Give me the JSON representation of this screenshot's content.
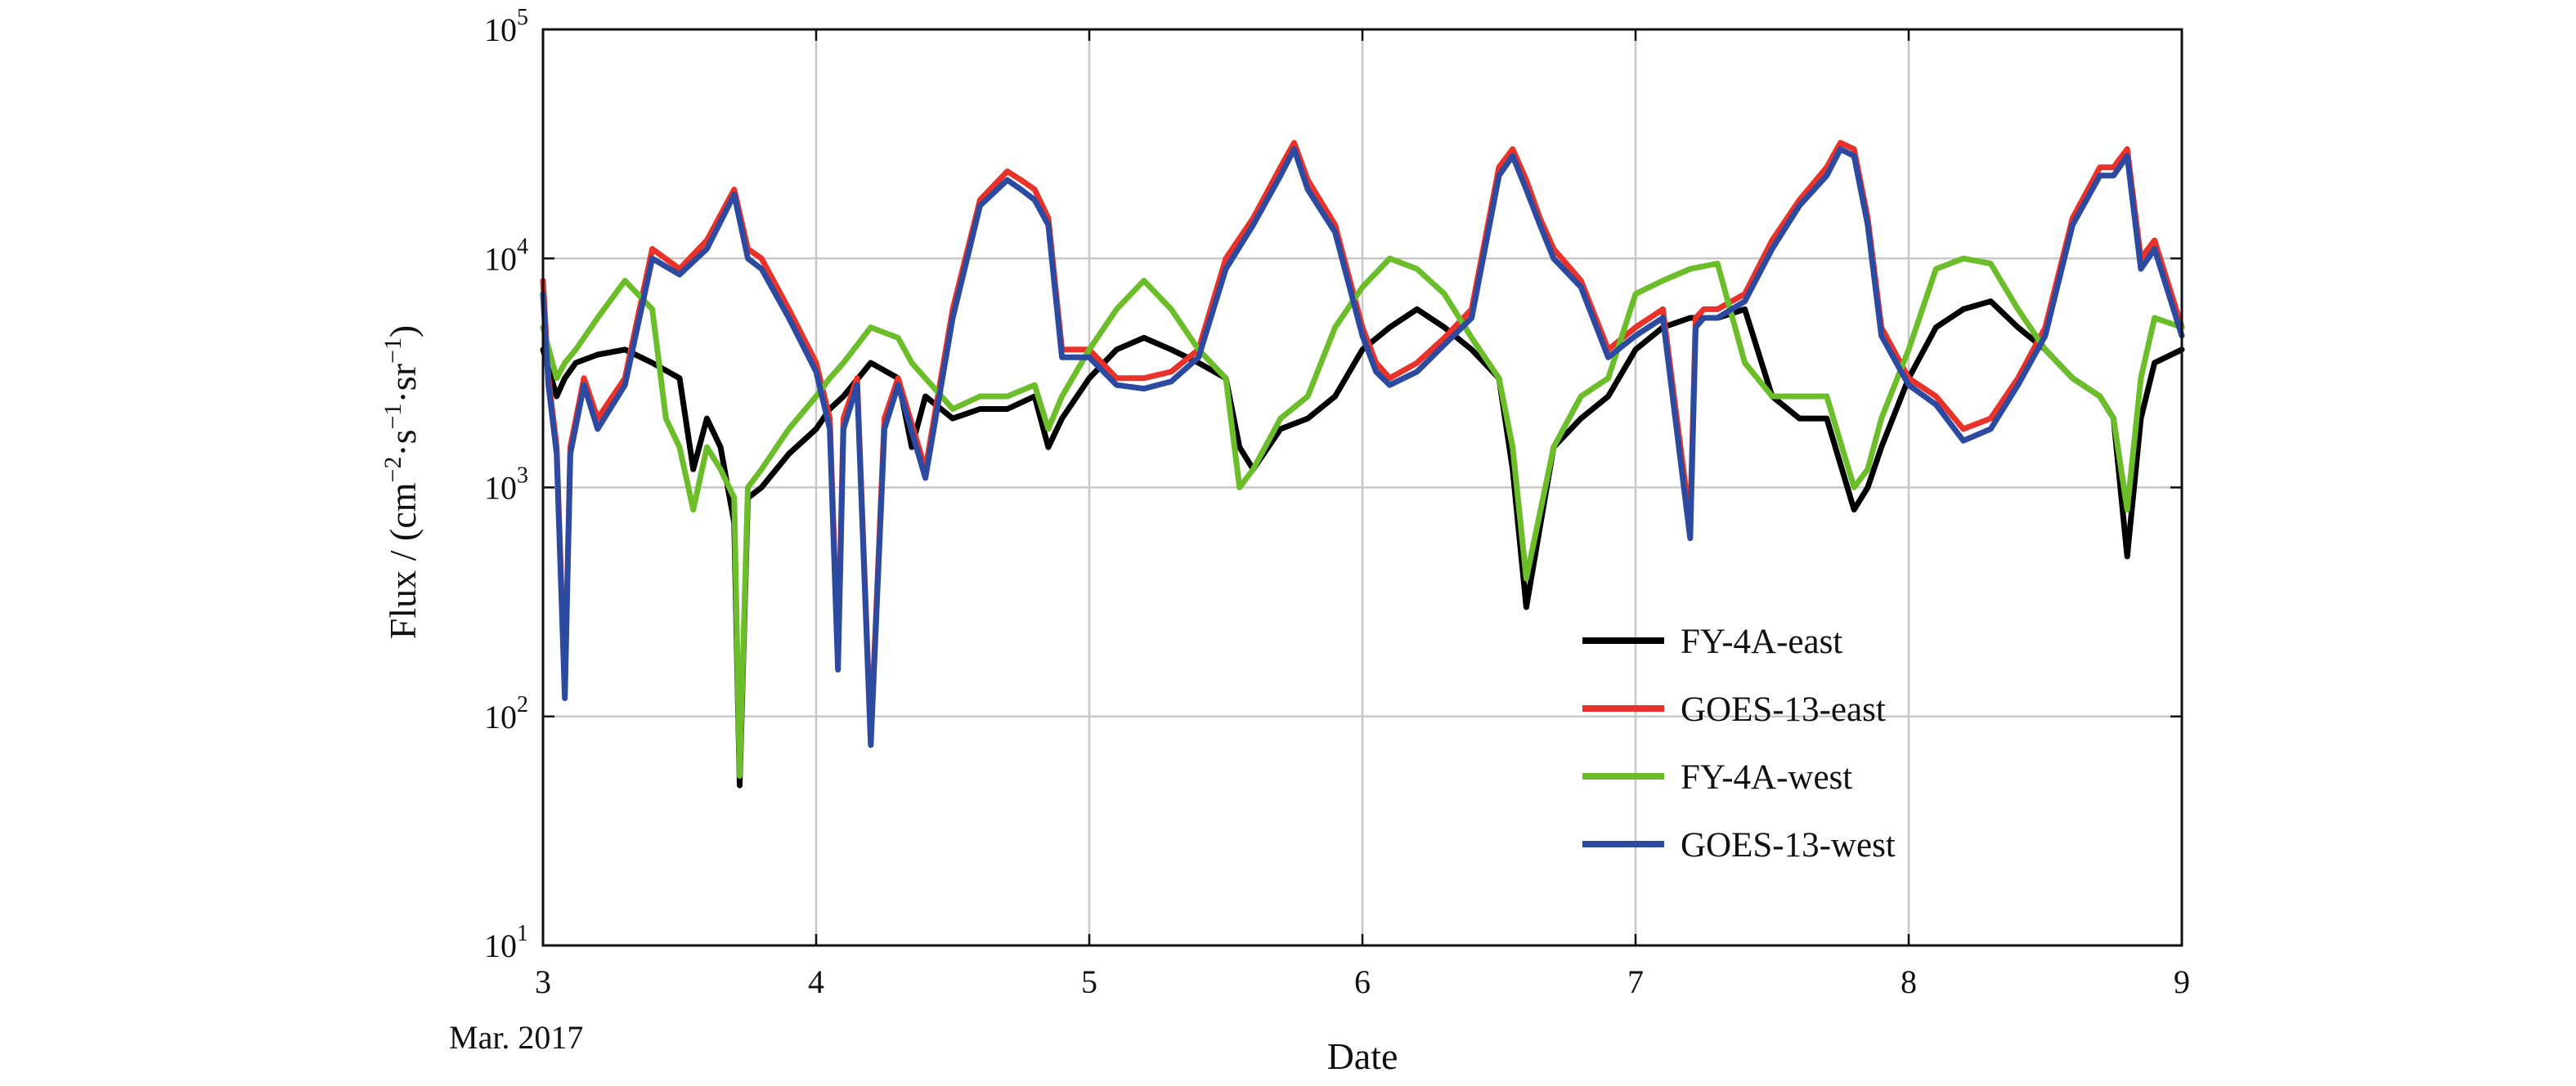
{
  "chart_data": {
    "type": "line",
    "xlabel": "Date",
    "x_sublabel": "Mar. 2017",
    "ylabel": {
      "prefix": "Flux / (cm",
      "sup1": "−2",
      "mid1": "·s",
      "sup2": "−1",
      "mid2": "·sr",
      "sup3": "−1",
      "suffix": ")"
    },
    "xlim": [
      3,
      9
    ],
    "ylim": [
      10,
      100000
    ],
    "yscale": "log",
    "grid": true,
    "legend_position": "lower-right",
    "x_ticks": [
      "3",
      "4",
      "5",
      "6",
      "7",
      "8",
      "9"
    ],
    "y_ticks": [
      {
        "value": 10,
        "base": "10",
        "exp": "1"
      },
      {
        "value": 100,
        "base": "10",
        "exp": "2"
      },
      {
        "value": 1000,
        "base": "10",
        "exp": "3"
      },
      {
        "value": 10000,
        "base": "10",
        "exp": "4"
      },
      {
        "value": 100000,
        "base": "10",
        "exp": "5"
      }
    ],
    "series": [
      {
        "name": "FY-4A-east",
        "color": "#000000",
        "x": [
          3.0,
          3.05,
          3.08,
          3.12,
          3.2,
          3.3,
          3.4,
          3.5,
          3.55,
          3.6,
          3.65,
          3.7,
          3.72,
          3.75,
          3.8,
          3.9,
          4.0,
          4.05,
          4.1,
          4.2,
          4.3,
          4.35,
          4.4,
          4.5,
          4.6,
          4.7,
          4.8,
          4.85,
          4.9,
          5.0,
          5.1,
          5.2,
          5.3,
          5.4,
          5.5,
          5.55,
          5.6,
          5.7,
          5.8,
          5.9,
          6.0,
          6.1,
          6.2,
          6.3,
          6.4,
          6.5,
          6.55,
          6.6,
          6.7,
          6.8,
          6.9,
          7.0,
          7.1,
          7.2,
          7.3,
          7.4,
          7.5,
          7.6,
          7.7,
          7.8,
          7.85,
          7.9,
          8.0,
          8.1,
          8.2,
          8.3,
          8.4,
          8.5,
          8.6,
          8.7,
          8.75,
          8.8,
          8.85,
          8.9,
          9.0
        ],
        "y": [
          4000,
          2500,
          3000,
          3500,
          3800,
          4000,
          3500,
          3000,
          1200,
          2000,
          1500,
          700,
          50,
          900,
          1000,
          1400,
          1800,
          2200,
          2500,
          3500,
          3000,
          1500,
          2500,
          2000,
          2200,
          2200,
          2500,
          1500,
          2000,
          3000,
          4000,
          4500,
          4000,
          3500,
          3000,
          1500,
          1200,
          1800,
          2000,
          2500,
          4000,
          5000,
          6000,
          5000,
          4000,
          3000,
          1200,
          300,
          1500,
          2000,
          2500,
          4000,
          5000,
          5500,
          5500,
          6000,
          2500,
          2000,
          2000,
          800,
          1000,
          1500,
          3000,
          5000,
          6000,
          6500,
          5000,
          4000,
          3000,
          2500,
          2000,
          500,
          2000,
          3500,
          4000
        ]
      },
      {
        "name": "GOES-13-east",
        "color": "#e8322a",
        "x": [
          3.0,
          3.02,
          3.05,
          3.08,
          3.1,
          3.15,
          3.2,
          3.3,
          3.4,
          3.5,
          3.6,
          3.7,
          3.75,
          3.8,
          3.9,
          4.0,
          4.05,
          4.08,
          4.1,
          4.15,
          4.2,
          4.25,
          4.3,
          4.4,
          4.5,
          4.6,
          4.7,
          4.75,
          4.8,
          4.85,
          4.9,
          5.0,
          5.1,
          5.2,
          5.3,
          5.4,
          5.5,
          5.6,
          5.7,
          5.75,
          5.8,
          5.9,
          6.0,
          6.05,
          6.1,
          6.2,
          6.3,
          6.4,
          6.5,
          6.55,
          6.6,
          6.65,
          6.7,
          6.8,
          6.9,
          7.0,
          7.1,
          7.2,
          7.22,
          7.25,
          7.3,
          7.4,
          7.5,
          7.6,
          7.7,
          7.75,
          7.8,
          7.85,
          7.9,
          8.0,
          8.1,
          8.2,
          8.3,
          8.4,
          8.5,
          8.6,
          8.7,
          8.75,
          8.8,
          8.85,
          8.9,
          9.0
        ],
        "y": [
          8000,
          3000,
          1500,
          130,
          1500,
          3000,
          2000,
          3000,
          11000,
          9000,
          12000,
          20000,
          11000,
          10000,
          6000,
          3500,
          2000,
          180,
          2000,
          3000,
          80,
          2000,
          3000,
          1200,
          6000,
          18000,
          24000,
          22000,
          20000,
          15000,
          4000,
          4000,
          3000,
          3000,
          3200,
          4000,
          10000,
          15000,
          25000,
          32000,
          22000,
          14000,
          5000,
          3500,
          3000,
          3500,
          4500,
          6000,
          25000,
          30000,
          22000,
          15000,
          11000,
          8000,
          4000,
          5000,
          6000,
          700,
          5500,
          6000,
          6000,
          7000,
          12000,
          18000,
          25000,
          32000,
          30000,
          15000,
          5000,
          3000,
          2500,
          1800,
          2000,
          3000,
          5000,
          15000,
          25000,
          25000,
          30000,
          10000,
          12000,
          5000
        ]
      },
      {
        "name": "FY-4A-west",
        "color": "#6cbd2a",
        "x": [
          3.0,
          3.05,
          3.08,
          3.12,
          3.2,
          3.3,
          3.4,
          3.45,
          3.5,
          3.55,
          3.6,
          3.65,
          3.7,
          3.72,
          3.75,
          3.8,
          3.9,
          4.0,
          4.05,
          4.1,
          4.2,
          4.3,
          4.35,
          4.4,
          4.5,
          4.6,
          4.7,
          4.8,
          4.85,
          4.9,
          5.0,
          5.1,
          5.2,
          5.3,
          5.4,
          5.5,
          5.55,
          5.6,
          5.7,
          5.8,
          5.9,
          6.0,
          6.1,
          6.2,
          6.3,
          6.4,
          6.5,
          6.55,
          6.6,
          6.7,
          6.8,
          6.9,
          7.0,
          7.1,
          7.2,
          7.3,
          7.4,
          7.5,
          7.6,
          7.7,
          7.8,
          7.85,
          7.9,
          8.0,
          8.1,
          8.2,
          8.3,
          8.4,
          8.5,
          8.6,
          8.7,
          8.75,
          8.8,
          8.85,
          8.9,
          9.0
        ],
        "y": [
          5000,
          3000,
          3500,
          4000,
          5500,
          8000,
          6000,
          2000,
          1500,
          800,
          1500,
          1200,
          900,
          55,
          1000,
          1200,
          1800,
          2500,
          3000,
          3500,
          5000,
          4500,
          3500,
          3000,
          2200,
          2500,
          2500,
          2800,
          1800,
          2500,
          4000,
          6000,
          8000,
          6000,
          4000,
          3000,
          1000,
          1200,
          2000,
          2500,
          5000,
          7500,
          10000,
          9000,
          7000,
          4500,
          3000,
          1500,
          400,
          1500,
          2500,
          3000,
          7000,
          8000,
          9000,
          9500,
          3500,
          2500,
          2500,
          2500,
          1000,
          1200,
          2000,
          4000,
          9000,
          10000,
          9500,
          6000,
          4000,
          3000,
          2500,
          2000,
          800,
          3000,
          5500,
          5000
        ]
      },
      {
        "name": "GOES-13-west",
        "color": "#2c4aa0",
        "x": [
          3.0,
          3.02,
          3.05,
          3.08,
          3.1,
          3.15,
          3.2,
          3.3,
          3.4,
          3.5,
          3.6,
          3.7,
          3.75,
          3.8,
          3.9,
          4.0,
          4.05,
          4.08,
          4.1,
          4.15,
          4.2,
          4.25,
          4.3,
          4.4,
          4.5,
          4.6,
          4.7,
          4.75,
          4.8,
          4.85,
          4.9,
          5.0,
          5.1,
          5.2,
          5.3,
          5.4,
          5.5,
          5.6,
          5.7,
          5.75,
          5.8,
          5.9,
          6.0,
          6.05,
          6.1,
          6.2,
          6.3,
          6.4,
          6.5,
          6.55,
          6.6,
          6.65,
          6.7,
          6.8,
          6.9,
          7.0,
          7.1,
          7.2,
          7.22,
          7.25,
          7.3,
          7.4,
          7.5,
          7.6,
          7.7,
          7.75,
          7.8,
          7.85,
          7.9,
          8.0,
          8.1,
          8.2,
          8.3,
          8.4,
          8.5,
          8.6,
          8.7,
          8.75,
          8.8,
          8.85,
          8.9,
          9.0
        ],
        "y": [
          7000,
          2800,
          1400,
          120,
          1400,
          2800,
          1800,
          2800,
          10000,
          8500,
          11000,
          19000,
          10000,
          9000,
          5500,
          3200,
          1800,
          160,
          1800,
          2800,
          75,
          1800,
          2800,
          1100,
          5500,
          17000,
          22000,
          20000,
          18000,
          14000,
          3700,
          3700,
          2800,
          2700,
          2900,
          3700,
          9000,
          14000,
          23000,
          30000,
          20000,
          13000,
          4600,
          3200,
          2800,
          3200,
          4200,
          5500,
          23000,
          28000,
          20000,
          14000,
          10000,
          7500,
          3700,
          4600,
          5500,
          600,
          5000,
          5500,
          5500,
          6500,
          11000,
          17000,
          23000,
          30000,
          28000,
          14000,
          4600,
          2800,
          2300,
          1600,
          1800,
          2800,
          4600,
          14000,
          23000,
          23000,
          28000,
          9000,
          11000,
          4600
        ]
      }
    ]
  }
}
